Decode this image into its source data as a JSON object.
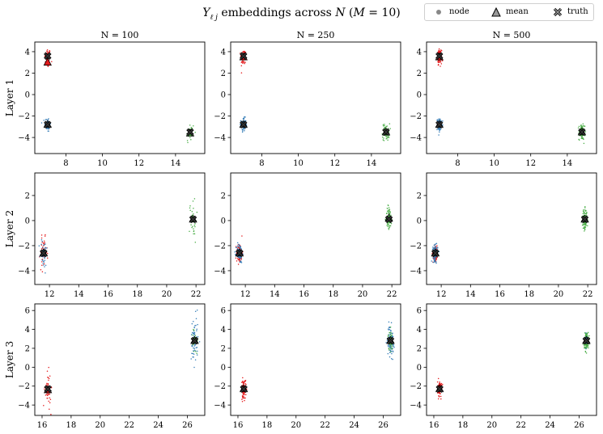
{
  "figure": {
    "title_prefix": "Y",
    "title_sub": "ℓ j",
    "title_mid": " embeddings across ",
    "title_N": "N",
    "title_paren_open": " (",
    "title_M": "M",
    "title_eq": " = 10)",
    "legend": [
      {
        "label": "node",
        "marker": "dot"
      },
      {
        "label": "mean",
        "marker": "triangle"
      },
      {
        "label": "truth",
        "marker": "x"
      }
    ]
  },
  "colors": {
    "red": "#e41a1c",
    "blue": "#377eb8",
    "green": "#4daf4a",
    "marker_fill": "#333333"
  },
  "chart_data": [
    {
      "type": "scatter",
      "row_label": "Layer 1",
      "col_title": "N = 100",
      "xlim": [
        6.3,
        15.6
      ],
      "ylim": [
        -5.5,
        4.9
      ],
      "xticks": [
        8,
        10,
        12,
        14
      ],
      "yticks": [
        -4,
        -2,
        0,
        2,
        4
      ],
      "clusters": [
        {
          "color": "red",
          "cx": 7.0,
          "cy": 3.4,
          "sx": 0.08,
          "sy": 0.45,
          "n": 50,
          "mean": [
            7.0,
            3.0
          ],
          "truth": [
            7.0,
            3.6
          ]
        },
        {
          "color": "blue",
          "cx": 7.0,
          "cy": -2.8,
          "sx": 0.08,
          "sy": 0.35,
          "n": 50,
          "mean": [
            7.0,
            -2.8
          ],
          "truth": [
            7.0,
            -2.8
          ]
        },
        {
          "color": "green",
          "cx": 14.8,
          "cy": -3.6,
          "sx": 0.12,
          "sy": 0.5,
          "n": 30,
          "mean": [
            14.8,
            -3.6
          ],
          "truth": [
            14.8,
            -3.5
          ]
        }
      ]
    },
    {
      "type": "scatter",
      "row_label": "Layer 1",
      "col_title": "N = 250",
      "xlim": [
        6.3,
        15.6
      ],
      "ylim": [
        -5.5,
        4.9
      ],
      "xticks": [
        8,
        10,
        12,
        14
      ],
      "yticks": [
        -4,
        -2,
        0,
        2,
        4
      ],
      "clusters": [
        {
          "color": "red",
          "cx": 7.0,
          "cy": 3.5,
          "sx": 0.07,
          "sy": 0.35,
          "n": 90,
          "mean": [
            7.0,
            3.5
          ],
          "truth": [
            7.0,
            3.6
          ]
        },
        {
          "color": "blue",
          "cx": 7.0,
          "cy": -2.8,
          "sx": 0.07,
          "sy": 0.3,
          "n": 90,
          "mean": [
            7.0,
            -2.8
          ],
          "truth": [
            7.0,
            -2.8
          ]
        },
        {
          "color": "green",
          "cx": 14.8,
          "cy": -3.5,
          "sx": 0.1,
          "sy": 0.4,
          "n": 60,
          "mean": [
            14.8,
            -3.5
          ],
          "truth": [
            14.8,
            -3.5
          ]
        }
      ]
    },
    {
      "type": "scatter",
      "row_label": "Layer 1",
      "col_title": "N = 500",
      "xlim": [
        6.3,
        15.6
      ],
      "ylim": [
        -5.5,
        4.9
      ],
      "xticks": [
        8,
        10,
        12,
        14
      ],
      "yticks": [
        -4,
        -2,
        0,
        2,
        4
      ],
      "clusters": [
        {
          "color": "red",
          "cx": 7.0,
          "cy": 3.5,
          "sx": 0.06,
          "sy": 0.3,
          "n": 140,
          "mean": [
            7.0,
            3.5
          ],
          "truth": [
            7.0,
            3.6
          ]
        },
        {
          "color": "blue",
          "cx": 7.0,
          "cy": -2.8,
          "sx": 0.06,
          "sy": 0.25,
          "n": 140,
          "mean": [
            7.0,
            -2.8
          ],
          "truth": [
            7.0,
            -2.8
          ]
        },
        {
          "color": "green",
          "cx": 14.8,
          "cy": -3.5,
          "sx": 0.08,
          "sy": 0.35,
          "n": 110,
          "mean": [
            14.8,
            -3.5
          ],
          "truth": [
            14.8,
            -3.5
          ]
        }
      ]
    },
    {
      "type": "scatter",
      "row_label": "Layer 2",
      "col_title": "",
      "xlim": [
        11.0,
        22.6
      ],
      "ylim": [
        -5.1,
        3.8
      ],
      "xticks": [
        12,
        14,
        16,
        18,
        20,
        22
      ],
      "yticks": [
        -4,
        -2,
        0,
        2
      ],
      "clusters": [
        {
          "color": "red",
          "cx": 11.6,
          "cy": -2.6,
          "sx": 0.12,
          "sy": 0.6,
          "n": 45,
          "mean": [
            11.6,
            -2.6
          ],
          "truth": [
            11.6,
            -2.6
          ]
        },
        {
          "color": "blue",
          "cx": 11.6,
          "cy": -2.6,
          "sx": 0.12,
          "sy": 0.6,
          "n": 45,
          "mean": [
            11.6,
            -2.6
          ],
          "truth": [
            11.6,
            -2.6
          ]
        },
        {
          "color": "green",
          "cx": 21.8,
          "cy": 0.1,
          "sx": 0.12,
          "sy": 0.9,
          "n": 30,
          "mean": [
            21.8,
            0.1
          ],
          "truth": [
            21.8,
            0.1
          ]
        }
      ]
    },
    {
      "type": "scatter",
      "row_label": "Layer 2",
      "col_title": "",
      "xlim": [
        11.0,
        22.6
      ],
      "ylim": [
        -5.1,
        3.8
      ],
      "xticks": [
        12,
        14,
        16,
        18,
        20,
        22
      ],
      "yticks": [
        -4,
        -2,
        0,
        2
      ],
      "clusters": [
        {
          "color": "red",
          "cx": 11.6,
          "cy": -2.6,
          "sx": 0.1,
          "sy": 0.4,
          "n": 80,
          "mean": [
            11.6,
            -2.6
          ],
          "truth": [
            11.6,
            -2.6
          ]
        },
        {
          "color": "blue",
          "cx": 11.6,
          "cy": -2.6,
          "sx": 0.1,
          "sy": 0.4,
          "n": 80,
          "mean": [
            11.6,
            -2.6
          ],
          "truth": [
            11.6,
            -2.6
          ]
        },
        {
          "color": "green",
          "cx": 21.8,
          "cy": 0.2,
          "sx": 0.1,
          "sy": 0.5,
          "n": 60,
          "mean": [
            21.8,
            0.2
          ],
          "truth": [
            21.8,
            0.1
          ]
        }
      ]
    },
    {
      "type": "scatter",
      "row_label": "Layer 2",
      "col_title": "",
      "xlim": [
        11.0,
        22.6
      ],
      "ylim": [
        -5.1,
        3.8
      ],
      "xticks": [
        12,
        14,
        16,
        18,
        20,
        22
      ],
      "yticks": [
        -4,
        -2,
        0,
        2
      ],
      "clusters": [
        {
          "color": "red",
          "cx": 11.6,
          "cy": -2.6,
          "sx": 0.08,
          "sy": 0.3,
          "n": 120,
          "mean": [
            11.6,
            -2.6
          ],
          "truth": [
            11.6,
            -2.6
          ]
        },
        {
          "color": "blue",
          "cx": 11.6,
          "cy": -2.6,
          "sx": 0.08,
          "sy": 0.3,
          "n": 120,
          "mean": [
            11.6,
            -2.6
          ],
          "truth": [
            11.6,
            -2.6
          ]
        },
        {
          "color": "green",
          "cx": 21.8,
          "cy": 0.1,
          "sx": 0.08,
          "sy": 0.4,
          "n": 120,
          "mean": [
            21.8,
            0.1
          ],
          "truth": [
            21.8,
            0.1
          ]
        }
      ]
    },
    {
      "type": "scatter",
      "row_label": "Layer 3",
      "col_title": "",
      "xlim": [
        15.5,
        27.2
      ],
      "ylim": [
        -5.1,
        6.7
      ],
      "xticks": [
        16,
        18,
        20,
        22,
        24,
        26
      ],
      "yticks": [
        -4,
        -2,
        0,
        2,
        4,
        6
      ],
      "clusters": [
        {
          "color": "red",
          "cx": 16.4,
          "cy": -2.4,
          "sx": 0.1,
          "sy": 0.9,
          "n": 50,
          "mean": [
            16.4,
            -2.4
          ],
          "truth": [
            16.4,
            -2.3
          ]
        },
        {
          "color": "blue",
          "cx": 26.5,
          "cy": 2.8,
          "sx": 0.12,
          "sy": 1.3,
          "n": 60,
          "mean": [
            26.5,
            2.8
          ],
          "truth": [
            26.5,
            2.8
          ]
        },
        {
          "color": "green",
          "cx": 26.5,
          "cy": 2.8,
          "sx": 0.1,
          "sy": 0.8,
          "n": 20,
          "mean": [
            26.5,
            2.8
          ],
          "truth": [
            26.5,
            2.8
          ]
        }
      ]
    },
    {
      "type": "scatter",
      "row_label": "Layer 3",
      "col_title": "",
      "xlim": [
        15.5,
        27.2
      ],
      "ylim": [
        -5.1,
        6.7
      ],
      "xticks": [
        16,
        18,
        20,
        22,
        24,
        26
      ],
      "yticks": [
        -4,
        -2,
        0,
        2,
        4,
        6
      ],
      "clusters": [
        {
          "color": "red",
          "cx": 16.4,
          "cy": -2.3,
          "sx": 0.08,
          "sy": 0.5,
          "n": 90,
          "mean": [
            16.4,
            -2.3
          ],
          "truth": [
            16.4,
            -2.3
          ]
        },
        {
          "color": "blue",
          "cx": 26.5,
          "cy": 2.8,
          "sx": 0.1,
          "sy": 0.8,
          "n": 100,
          "mean": [
            26.5,
            2.8
          ],
          "truth": [
            26.5,
            2.8
          ]
        },
        {
          "color": "green",
          "cx": 26.5,
          "cy": 2.8,
          "sx": 0.08,
          "sy": 0.5,
          "n": 40,
          "mean": [
            26.5,
            2.8
          ],
          "truth": [
            26.5,
            2.8
          ]
        }
      ]
    },
    {
      "type": "scatter",
      "row_label": "Layer 3",
      "col_title": "",
      "xlim": [
        15.5,
        27.2
      ],
      "ylim": [
        -5.1,
        6.7
      ],
      "xticks": [
        16,
        18,
        20,
        22,
        24,
        26
      ],
      "yticks": [
        -4,
        -2,
        0,
        2,
        4,
        6
      ],
      "clusters": [
        {
          "color": "red",
          "cx": 16.4,
          "cy": -2.3,
          "sx": 0.07,
          "sy": 0.4,
          "n": 130,
          "mean": [
            16.4,
            -2.3
          ],
          "truth": [
            16.4,
            -2.3
          ]
        },
        {
          "color": "green",
          "cx": 26.5,
          "cy": 2.8,
          "sx": 0.08,
          "sy": 0.45,
          "n": 150,
          "mean": [
            26.5,
            2.8
          ],
          "truth": [
            26.5,
            2.8
          ]
        },
        {
          "color": "blue",
          "cx": 26.5,
          "cy": 2.8,
          "sx": 0.06,
          "sy": 0.35,
          "n": 20,
          "mean": [
            26.5,
            2.8
          ],
          "truth": [
            26.5,
            2.8
          ]
        }
      ]
    }
  ]
}
